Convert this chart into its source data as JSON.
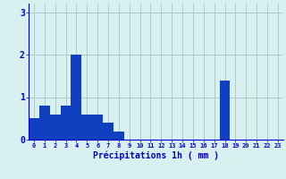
{
  "values": [
    0.5,
    0.8,
    0.6,
    0.8,
    2.0,
    0.6,
    0.6,
    0.4,
    0.2,
    0.0,
    0.0,
    0.0,
    0.0,
    0.0,
    0.0,
    0.0,
    0.0,
    0.0,
    1.4,
    0.0,
    0.0,
    0.0,
    0.0,
    0.0
  ],
  "bar_color": "#1040c0",
  "background_color": "#d8f0f0",
  "grid_color": "#b0c8c8",
  "xlabel": "Précipitations 1h ( mm )",
  "tick_color": "#0000cc",
  "ylim": [
    0,
    3.2
  ],
  "yticks": [
    0,
    1,
    2,
    3
  ],
  "num_bars": 24,
  "figsize": [
    3.2,
    2.0
  ],
  "dpi": 100
}
